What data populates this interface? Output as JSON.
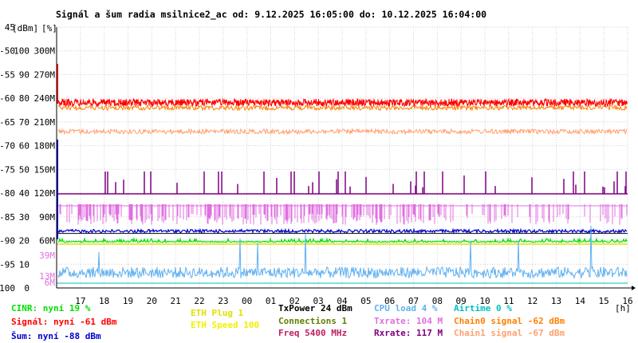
{
  "title": "Signál a šum radia msilnice2_ac od: 9.12.2025 16:05:00 do: 10.12.2025 16:04:00",
  "colors": {
    "background": "#ffffff",
    "grid": "#d0d0d0",
    "signal": "#ff0000",
    "noise": "#0000cc",
    "cinr": "#00e000",
    "chain0": "#ff8000",
    "chain1": "#ffa070",
    "tx_rate": "#e070e0",
    "rx_rate": "#800080",
    "cpu_load": "#60b0f0",
    "airtime": "#00c0c0",
    "eth_plug": "#e0e000",
    "eth_speed": "#f0f000",
    "connections": "#608000",
    "freq": "#c02060",
    "txpower": "#000000"
  },
  "chart_data": {
    "type": "line",
    "title": "Signál a šum radia msilnice2_ac od: 9.12.2025 16:05:00 do: 10.12.2025 16:04:00",
    "x_ticks": [
      "17",
      "18",
      "19",
      "20",
      "21",
      "22",
      "23",
      "00",
      "01",
      "02",
      "03",
      "04",
      "05",
      "06",
      "07",
      "08",
      "09",
      "10",
      "11",
      "12",
      "13",
      "14",
      "15",
      "16"
    ],
    "x_unit": "[h]",
    "y_axes": {
      "dbm": {
        "label": "[dBm]",
        "ticks": [
          "45",
          "-50",
          "-55",
          "-60",
          "-65",
          "-70",
          "-75",
          "-80",
          "-85",
          "-90",
          "-95",
          "-100"
        ],
        "range": [
          -100,
          -45
        ]
      },
      "percent": {
        "label": "[%]",
        "ticks": [
          "100",
          "90",
          "80",
          "70",
          "60",
          "50",
          "40",
          "30",
          "20",
          "10",
          "0"
        ],
        "range": [
          0,
          100
        ]
      },
      "rate": {
        "ticks": [
          "300M",
          "270M",
          "240M",
          "210M",
          "180M",
          "150M",
          "120M",
          "90M",
          "60M",
          "39M",
          "13M",
          "6M"
        ]
      }
    },
    "grid": true,
    "series": [
      {
        "name": "Signál",
        "axis": "dbm",
        "level": -61,
        "band": [
          -62.5,
          -59.5
        ]
      },
      {
        "name": "Chain0 signal",
        "axis": "dbm",
        "level": -62,
        "band": [
          -63.5,
          -61
        ]
      },
      {
        "name": "Chain1 signal",
        "axis": "dbm",
        "level": -67,
        "band": [
          -68,
          -65
        ]
      },
      {
        "name": "Šum",
        "axis": "dbm",
        "level": -88,
        "band": [
          -89.5,
          -86.5
        ]
      },
      {
        "name": "CINR",
        "axis": "percent",
        "level": 19
      },
      {
        "name": "Rxrate",
        "axis": "rate",
        "level": 117
      },
      {
        "name": "Txrate",
        "axis": "rate",
        "level": 104
      },
      {
        "name": "CPU load",
        "axis": "percent",
        "level": 4
      },
      {
        "name": "Airtime",
        "axis": "percent",
        "level": 0
      }
    ]
  },
  "legend": {
    "cinr": "CINR: nyní 19 %",
    "signal": "Signál: nyní -61 dBm",
    "noise": "Šum: nyní -88 dBm",
    "eth_plug": "ETH Plug 1",
    "eth_speed": "ETH Speed 100",
    "txpower": "TxPower 24 dBm",
    "connections": "Connections 1",
    "freq": "Freq 5400 MHz",
    "cpu_load": "CPU load 4 %",
    "tx_rate": "Txrate: 104 M",
    "rx_rate": "Rxrate: 117 M",
    "airtime": "Airtime 0 %",
    "chain0": "Chain0 signal -62 dBm",
    "chain1": "Chain1 signal -67 dBm"
  }
}
